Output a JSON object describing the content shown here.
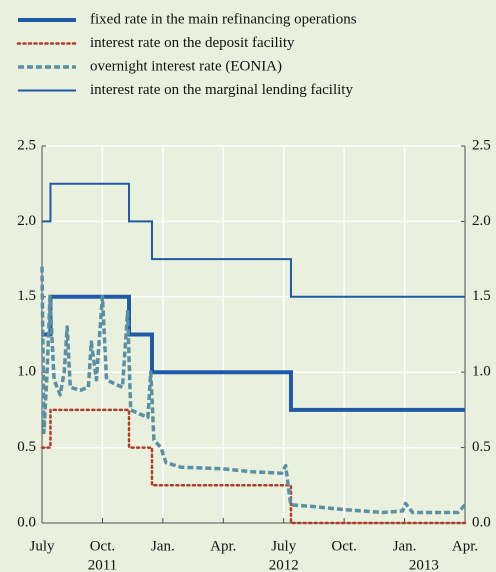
{
  "chart_data": {
    "type": "line",
    "xlim": [
      2011.5,
      2013.25
    ],
    "ylim": [
      0,
      2.5
    ],
    "yticks": [
      {
        "value": 0,
        "label": "0.0"
      },
      0.5,
      {
        "value": 1,
        "label": "1.0"
      },
      1.5,
      {
        "value": 2,
        "label": "2.0"
      },
      2.5
    ],
    "xticks": [
      {
        "value": 2011.5,
        "label": "July"
      },
      {
        "value": 2011.75,
        "label": "Oct."
      },
      {
        "value": 2012.0,
        "label": "Jan."
      },
      {
        "value": 2012.25,
        "label": "Apr."
      },
      {
        "value": 2012.5,
        "label": "July"
      },
      {
        "value": 2012.75,
        "label": "Oct."
      },
      {
        "value": 2013.0,
        "label": "Jan."
      },
      {
        "value": 2013.25,
        "label": "Apr."
      }
    ],
    "year_labels": [
      {
        "value": 2011.75,
        "label": "2011"
      },
      {
        "value": 2012.5,
        "label": "2012"
      },
      {
        "value": 2013.08,
        "label": "2013"
      }
    ],
    "grid": true,
    "series": [
      {
        "name": "fixed rate in the main refinancing operations",
        "color": "#1f5aa6",
        "style": "solid",
        "width": 4,
        "step": true,
        "x": [
          2011.5,
          2011.535,
          2011.86,
          2011.955,
          2012.53,
          2013.25
        ],
        "values": [
          1.25,
          1.5,
          1.25,
          1.0,
          0.75,
          0.75
        ]
      },
      {
        "name": "interest rate on the deposit facility",
        "color": "#b23c2a",
        "style": "dotted",
        "width": 2.5,
        "step": true,
        "x": [
          2011.5,
          2011.535,
          2011.86,
          2011.955,
          2012.53,
          2013.25
        ],
        "values": [
          0.5,
          0.75,
          0.5,
          0.25,
          0,
          0
        ]
      },
      {
        "name": "overnight interest rate (EONIA)",
        "color": "#5a8fa6",
        "style": "dashed",
        "width": 3.5,
        "step": false,
        "x": [
          2011.5,
          2011.508,
          2011.521,
          2011.533,
          2011.55,
          2011.575,
          2011.592,
          2011.604,
          2011.617,
          2011.658,
          2011.692,
          2011.704,
          2011.725,
          2011.75,
          2011.767,
          2011.804,
          2011.833,
          2011.854,
          2011.867,
          2011.908,
          2011.938,
          2011.95,
          2011.963,
          2011.992,
          2012.013,
          2012.075,
          2012.242,
          2012.367,
          2012.492,
          2012.508,
          2012.529,
          2012.617,
          2012.742,
          2012.908,
          2012.992,
          2013.004,
          2013.033,
          2013.221,
          2013.25
        ],
        "values": [
          1.7,
          0.6,
          1.0,
          1.5,
          0.95,
          0.85,
          1.0,
          1.3,
          0.9,
          0.88,
          0.9,
          1.2,
          0.95,
          1.5,
          0.95,
          0.92,
          0.9,
          1.4,
          0.75,
          0.72,
          0.7,
          1.0,
          0.55,
          0.5,
          0.4,
          0.37,
          0.36,
          0.34,
          0.33,
          0.38,
          0.12,
          0.11,
          0.09,
          0.07,
          0.08,
          0.13,
          0.07,
          0.07,
          0.12
        ]
      },
      {
        "name": "interest rate on the marginal lending facility",
        "color": "#1f5aa6",
        "style": "solid",
        "width": 2,
        "step": true,
        "x": [
          2011.5,
          2011.535,
          2011.86,
          2011.955,
          2012.53,
          2013.25
        ],
        "values": [
          2.0,
          2.25,
          2.0,
          1.75,
          1.5,
          1.5
        ]
      }
    ]
  }
}
